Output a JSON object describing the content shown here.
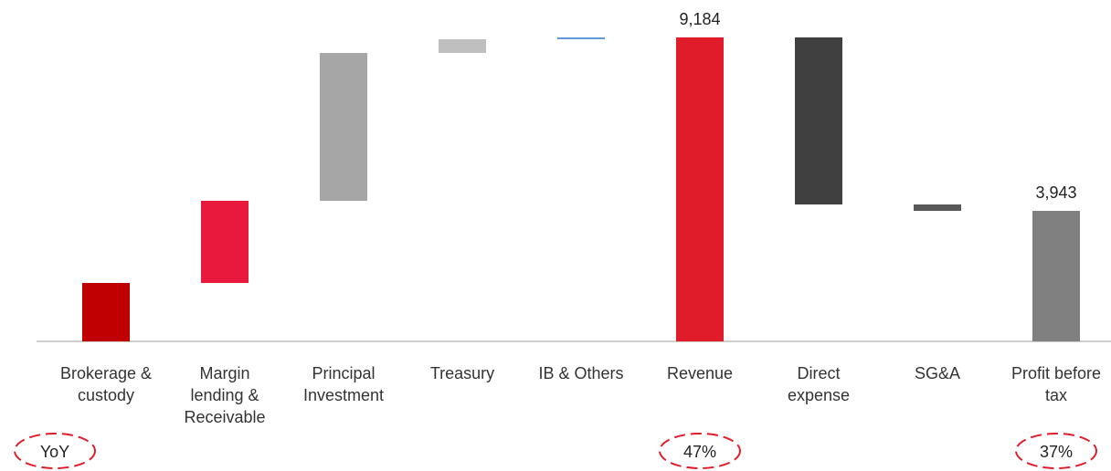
{
  "chart_data": {
    "type": "waterfall",
    "categories": [
      "Brokerage &\ncustody",
      "Margin\nlending &\nReceivable",
      "Principal\nInvestment",
      "Treasury",
      "IB & Others",
      "Revenue",
      "Direct\nexpense",
      "SG&A",
      "Profit before\ntax"
    ],
    "values": [
      1765,
      2482,
      4468,
      414,
      55,
      9184,
      -5047,
      -194,
      3943
    ],
    "value_labels": [
      null,
      null,
      null,
      null,
      null,
      "9,184",
      null,
      null,
      "3,943"
    ],
    "totals": [
      false,
      false,
      false,
      false,
      false,
      true,
      false,
      false,
      true
    ],
    "colors": [
      "#c00000",
      "#e8193c",
      "#a6a6a6",
      "#bfbfbf",
      "#5b9bd5",
      "#e01b2a",
      "#404040",
      "#595959",
      "#808080"
    ],
    "ylim": [
      0,
      10000
    ],
    "annotations": [
      {
        "text": "YoY",
        "category": 0
      },
      {
        "text": "47%",
        "category": 5
      },
      {
        "text": "37%",
        "category": 8
      }
    ]
  }
}
